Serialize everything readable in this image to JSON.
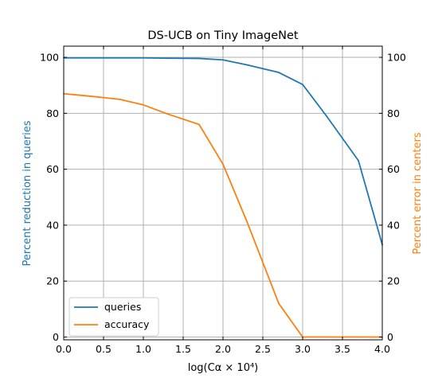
{
  "chart_data": {
    "type": "line",
    "title": "DS-UCB on Tiny ImageNet",
    "xlabel": "log(Cα × 10⁴)",
    "ylabel_left": "Percent reduction in queries",
    "ylabel_right": "Percent error in centers",
    "xlim": [
      0,
      4
    ],
    "ylim_left": [
      -1,
      104
    ],
    "ylim_right": [
      -1,
      104
    ],
    "x_ticks": [
      "0.0",
      "0.5",
      "1.0",
      "1.5",
      "2.0",
      "2.5",
      "3.0",
      "3.5",
      "4.0"
    ],
    "y_ticks_left": [
      "0",
      "20",
      "40",
      "60",
      "80",
      "100"
    ],
    "y_ticks_right": [
      "0",
      "20",
      "40",
      "60",
      "80",
      "100"
    ],
    "grid": true,
    "legend_position": "lower-left",
    "series": [
      {
        "name": "queries",
        "axis": "left",
        "color": "#1f77b4",
        "x": [
          0,
          0.3,
          0.7,
          1.0,
          1.3,
          1.7,
          2.0,
          2.3,
          2.7,
          3.0,
          3.3,
          3.7,
          4.0
        ],
        "y": [
          99.8,
          99.8,
          99.8,
          99.8,
          99.7,
          99.6,
          99.1,
          97.3,
          94.6,
          90.3,
          79.0,
          63.1,
          33.0
        ]
      },
      {
        "name": "accuracy",
        "axis": "right",
        "color": "#ff7f0e",
        "x": [
          0,
          0.3,
          0.7,
          1.0,
          1.3,
          1.7,
          2.0,
          2.3,
          2.7,
          3.0,
          3.3,
          3.7,
          4.0
        ],
        "y": [
          87.0,
          86.2,
          85.0,
          83.0,
          79.8,
          76.0,
          61.8,
          41.3,
          12.0,
          0,
          0,
          0,
          0
        ]
      }
    ]
  }
}
